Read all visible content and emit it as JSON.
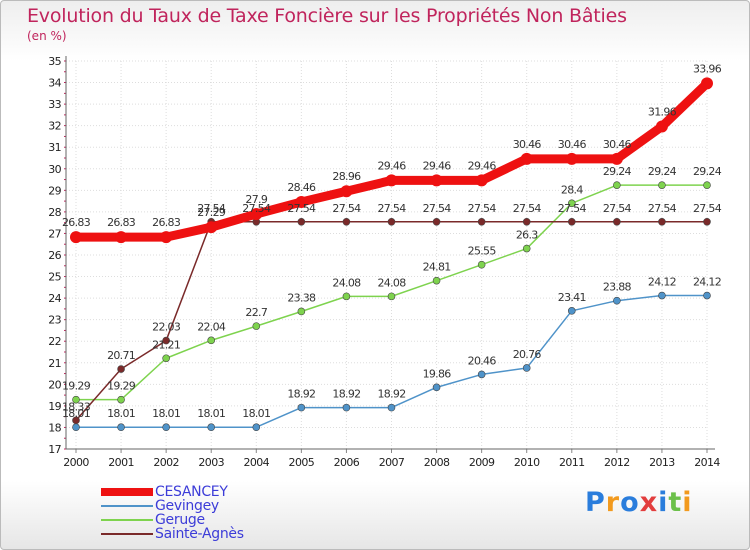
{
  "header": {
    "title": "Evolution du Taux de Taxe Foncière sur les Propriétés Non Bâties",
    "unit": "(en %)"
  },
  "brand": {
    "letters": [
      "P",
      "r",
      "o",
      "x",
      "i",
      "t",
      "i"
    ],
    "colors": [
      "#2a7ddc",
      "#f29a1e",
      "#2a7ddc",
      "#e23d3d",
      "#2a7ddc",
      "#6cc04a",
      "#f29a1e"
    ]
  },
  "chart_data": {
    "type": "line",
    "title": "Evolution du Taux de Taxe Foncière sur les Propriétés Non Bâties",
    "ylabel": "(en %)",
    "xlabel": "",
    "ylim": [
      17,
      35
    ],
    "yticks": [
      "17",
      "18",
      "19",
      "20",
      "21",
      "22",
      "23",
      "24",
      "25",
      "26",
      "27",
      "28",
      "29",
      "30",
      "31",
      "32",
      "33",
      "34",
      "35"
    ],
    "x": [
      "2000",
      "2001",
      "2002",
      "2003",
      "2004",
      "2005",
      "2006",
      "2007",
      "2008",
      "2009",
      "2010",
      "2011",
      "2012",
      "2013",
      "2014"
    ],
    "grid": true,
    "legend_position": "bottom-left",
    "series": [
      {
        "name": "Gevingey",
        "color": "#4f93c9",
        "values": [
          18.01,
          18.01,
          18.01,
          18.01,
          18.01,
          18.92,
          18.92,
          18.92,
          19.86,
          20.46,
          20.76,
          23.41,
          23.88,
          24.12,
          24.12
        ],
        "labels": [
          "18.01",
          "18.01",
          "18.01",
          "18.01",
          "18.01",
          "18.92",
          "18.92",
          "18.92",
          "19.86",
          "20.46",
          "20.76",
          "23.41",
          "23.88",
          "24.12",
          "24.12"
        ]
      },
      {
        "name": "Geruge",
        "color": "#7ed34e",
        "values": [
          19.29,
          19.29,
          21.21,
          22.04,
          22.7,
          23.38,
          24.08,
          24.08,
          24.81,
          25.55,
          26.3,
          28.4,
          29.24,
          29.24,
          29.24
        ],
        "labels": [
          "19.29",
          "19.29",
          "21.21",
          "22.04",
          "22.7",
          "23.38",
          "24.08",
          "24.08",
          "24.81",
          "25.55",
          "26.3",
          "28.4",
          "29.24",
          "29.24",
          "29.24"
        ]
      },
      {
        "name": "Sainte-Agnès",
        "color": "#7a2a2a",
        "values": [
          18.33,
          20.71,
          22.03,
          27.54,
          27.54,
          27.54,
          27.54,
          27.54,
          27.54,
          27.54,
          27.54,
          27.54,
          27.54,
          27.54,
          27.54
        ],
        "labels": [
          "18.33",
          "20.71",
          "22.03",
          "27.54",
          "27.54",
          "27.54",
          "27.54",
          "27.54",
          "27.54",
          "27.54",
          "27.54",
          "27.54",
          "27.54",
          "27.54",
          "27.54"
        ]
      },
      {
        "name": "CESANCEY",
        "color": "#ee1111",
        "values": [
          26.83,
          26.83,
          26.83,
          27.29,
          27.9,
          28.46,
          28.96,
          29.46,
          29.46,
          29.46,
          30.46,
          30.46,
          30.46,
          31.96,
          33.96
        ],
        "labels": [
          "26.83",
          "26.83",
          "26.83",
          "27.29",
          "27.9",
          "28.46",
          "28.96",
          "29.46",
          "29.46",
          "29.46",
          "30.46",
          "30.46",
          "30.46",
          "31.96",
          "33.96"
        ]
      }
    ],
    "legend": [
      {
        "name": "CESANCEY",
        "color": "#ee1111"
      },
      {
        "name": "Gevingey",
        "color": "#4f93c9"
      },
      {
        "name": "Geruge",
        "color": "#7ed34e"
      },
      {
        "name": "Sainte-Agnès",
        "color": "#7a2a2a"
      }
    ]
  }
}
